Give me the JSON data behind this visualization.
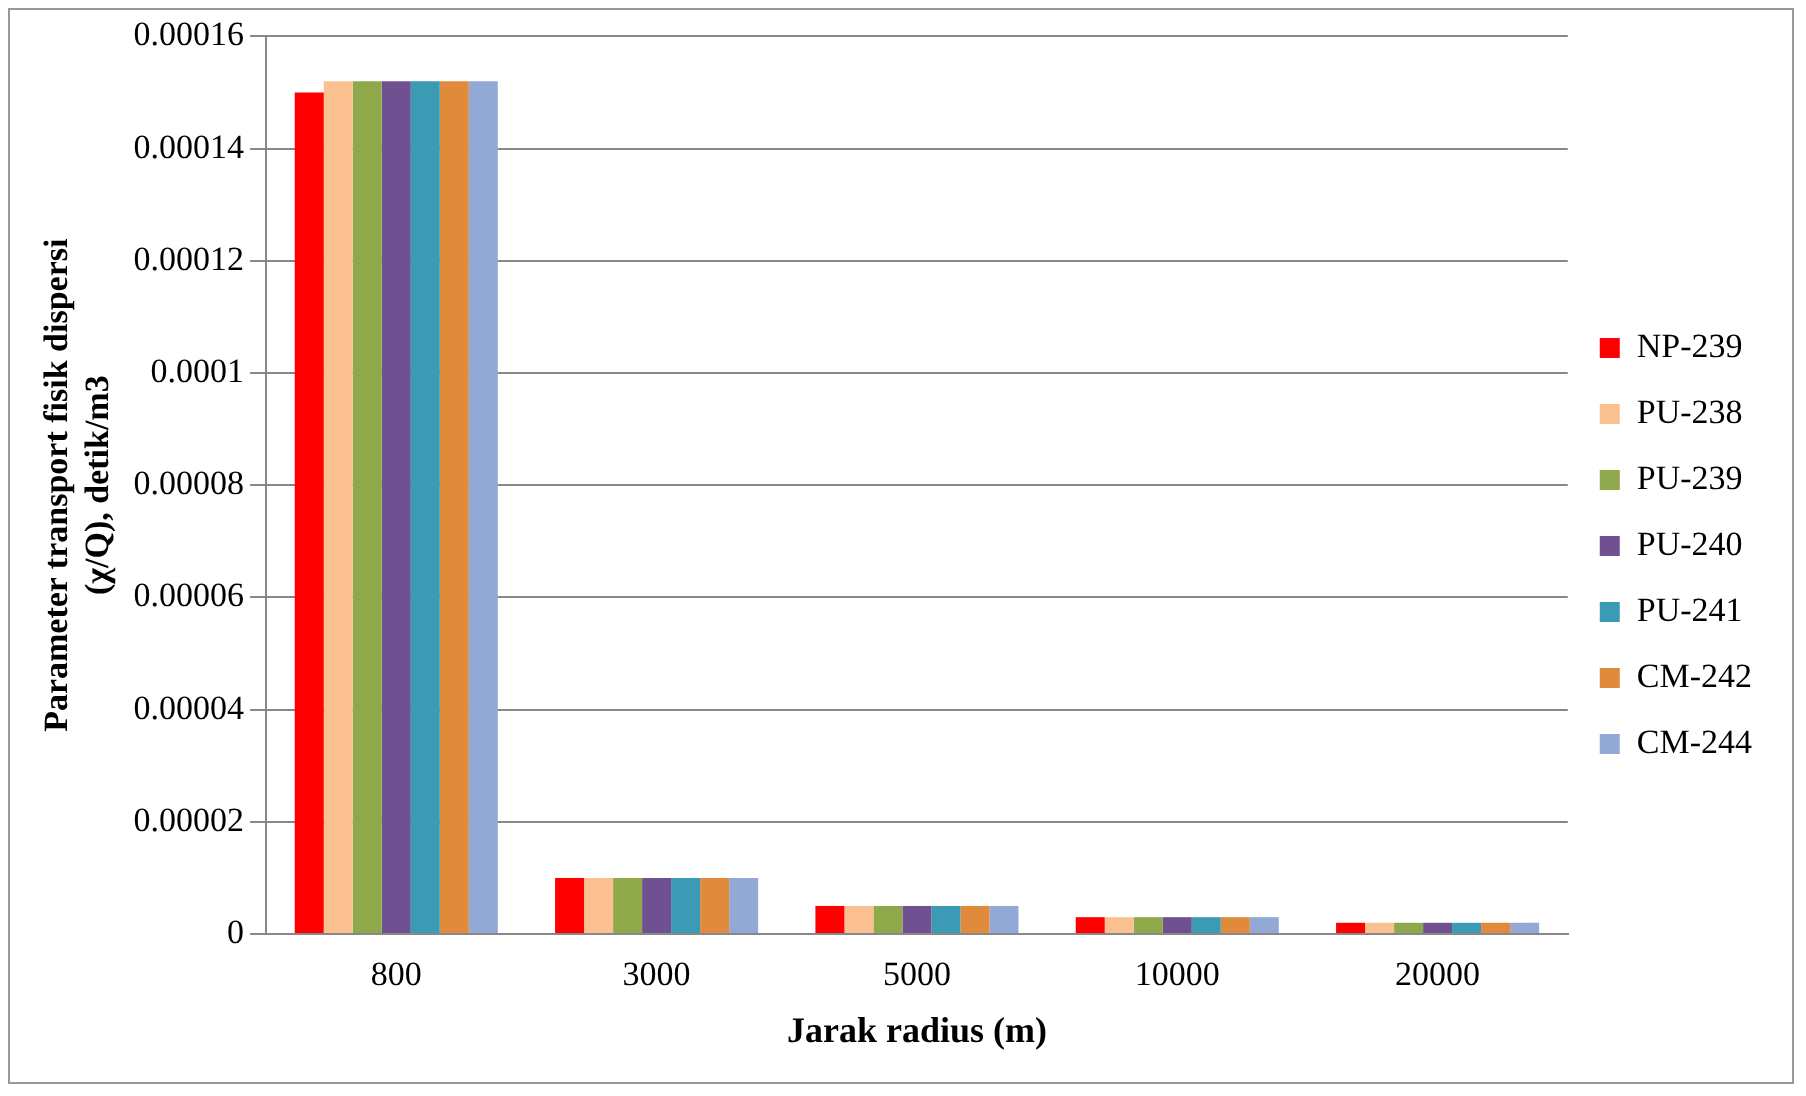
{
  "chart_data": {
    "type": "bar",
    "xlabel": "Jarak radius (m)",
    "ylabel": "Parameter transport fisik dispersi (χ/Q), detik/m3",
    "categories": [
      "800",
      "3000",
      "5000",
      "10000",
      "20000"
    ],
    "series": [
      {
        "name": "NP-239",
        "color": "#ff0000",
        "values": [
          0.00015,
          1e-05,
          5e-06,
          3e-06,
          2e-06
        ]
      },
      {
        "name": "PU-238",
        "color": "#fac090",
        "values": [
          0.000152,
          1e-05,
          5e-06,
          3e-06,
          2e-06
        ]
      },
      {
        "name": "PU-239",
        "color": "#8fa84a",
        "values": [
          0.000152,
          1e-05,
          5e-06,
          3e-06,
          2e-06
        ]
      },
      {
        "name": "PU-240",
        "color": "#6f5191",
        "values": [
          0.000152,
          1e-05,
          5e-06,
          3e-06,
          2e-06
        ]
      },
      {
        "name": "PU-241",
        "color": "#3b9ab4",
        "values": [
          0.000152,
          1e-05,
          5e-06,
          3e-06,
          2e-06
        ]
      },
      {
        "name": "CM-242",
        "color": "#e08a3c",
        "values": [
          0.000152,
          1e-05,
          5e-06,
          3e-06,
          2e-06
        ]
      },
      {
        "name": "CM-244",
        "color": "#92a9d6",
        "values": [
          0.000152,
          1e-05,
          5e-06,
          3e-06,
          2e-06
        ]
      }
    ],
    "ylim": [
      0,
      0.00016
    ],
    "yticks": [
      0,
      {
        "value": 2e-05,
        "label": "0.00002"
      },
      {
        "value": 4e-05,
        "label": "0.00004"
      },
      {
        "value": 6e-05,
        "label": "0.00006"
      },
      {
        "value": 8e-05,
        "label": "0.00008"
      },
      0.0001,
      0.00012,
      0.00014,
      0.00016
    ],
    "grid": "y",
    "legend": "right"
  }
}
